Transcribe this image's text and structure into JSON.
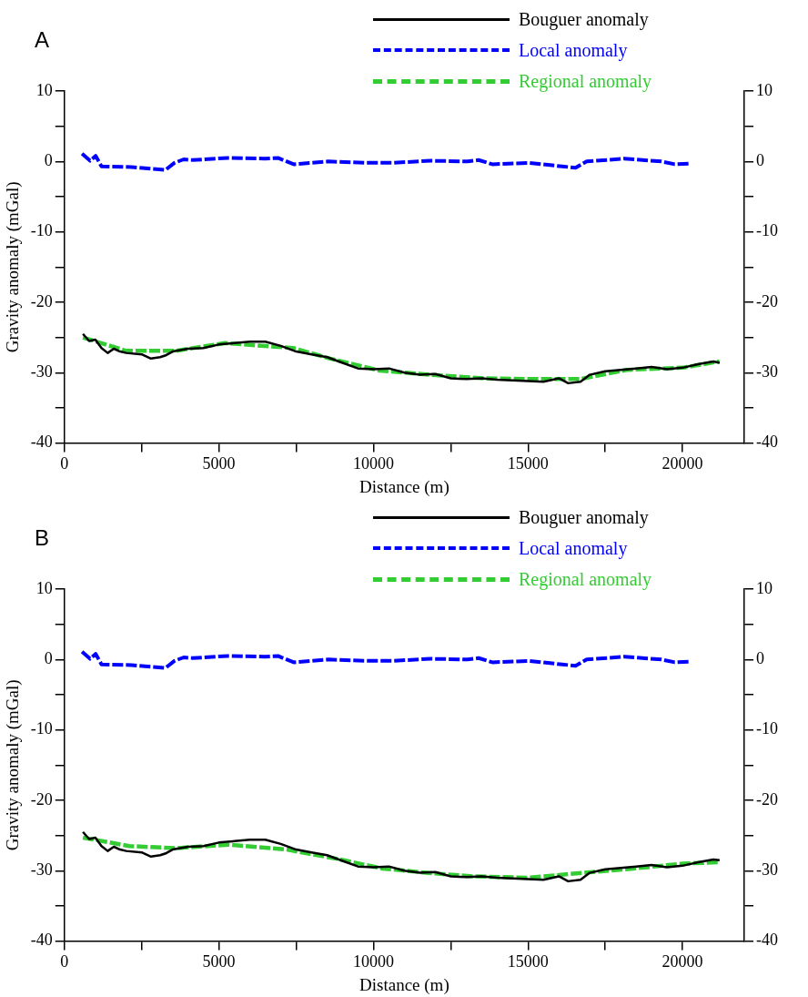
{
  "chart_data": [
    {
      "type": "line",
      "title": "A",
      "xlabel": "Distance (m)",
      "ylabel": "Gravity anomaly (mGal)",
      "xlim": [
        0,
        22000
      ],
      "xticks": [
        0,
        {
          "value": 2500,
          "label": null
        },
        5000,
        {
          "value": 7500,
          "label": null
        },
        10000,
        {
          "value": 12500,
          "label": null
        },
        15000,
        {
          "value": 17500,
          "label": null
        },
        20000
      ],
      "ylim": [
        -40,
        10
      ],
      "yticks": [
        -40,
        {
          "value": -35,
          "label": null
        },
        -30,
        {
          "value": -25,
          "label": null
        },
        -20,
        {
          "value": -15,
          "label": null
        },
        -10,
        {
          "value": -5,
          "label": null
        },
        0,
        {
          "value": 5,
          "label": null
        },
        10
      ],
      "y2lim": [
        -40,
        10
      ],
      "y2ticks": [
        -40,
        {
          "value": -35,
          "label": null
        },
        -30,
        {
          "value": -25,
          "label": null
        },
        -20,
        {
          "value": -15,
          "label": null
        },
        -10,
        {
          "value": -5,
          "label": null
        },
        0,
        {
          "value": 5,
          "label": null
        },
        10
      ],
      "grid": false,
      "legend": "top right",
      "marker": "none",
      "series": [
        {
          "name": "Bouguer anomaly",
          "color": "#000000",
          "line_style": "solid",
          "x": [
            600,
            800,
            1000,
            1200,
            1400,
            1600,
            1800,
            2000,
            2500,
            2800,
            3100,
            3300,
            3500,
            4000,
            4500,
            5000,
            5500,
            6000,
            6500,
            7000,
            7500,
            8000,
            8500,
            9000,
            9500,
            10000,
            10500,
            11000,
            11500,
            12000,
            12500,
            13000,
            13500,
            14000,
            14500,
            15000,
            15500,
            16000,
            16300,
            16700,
            17000,
            17500,
            18000,
            18500,
            19000,
            19500,
            20000,
            20500,
            21000,
            21200
          ],
          "values": [
            -24.5,
            -25.5,
            -25.3,
            -26.5,
            -27.2,
            -26.6,
            -27,
            -27.2,
            -27.4,
            -28,
            -27.8,
            -27.5,
            -27,
            -26.6,
            -26.5,
            -26,
            -25.8,
            -25.6,
            -25.6,
            -26.2,
            -27,
            -27.4,
            -27.8,
            -28.6,
            -29.4,
            -29.5,
            -29.4,
            -30,
            -30.3,
            -30.2,
            -30.8,
            -30.9,
            -30.8,
            -31,
            -31.1,
            -31.2,
            -31.3,
            -30.8,
            -31.5,
            -31.3,
            -30.3,
            -29.8,
            -29.6,
            -29.4,
            -29.2,
            -29.5,
            -29.3,
            -28.8,
            -28.4,
            -28.6
          ]
        },
        {
          "name": "Local anomaly",
          "color": "#0000ff",
          "line_style": "dashed",
          "x": [
            570,
            830,
            1010,
            1200,
            2170,
            3270,
            3560,
            3860,
            4150,
            5280,
            6470,
            6910,
            7420,
            8550,
            9760,
            10270,
            10630,
            11850,
            13050,
            13400,
            13850,
            15000,
            16110,
            16540,
            16900,
            18120,
            19320,
            19750,
            20200
          ],
          "values": [
            1.1,
            0.1,
            0.8,
            -0.7,
            -0.8,
            -1.2,
            -0.2,
            0.3,
            0.2,
            0.5,
            0.4,
            0.5,
            -0.4,
            0,
            -0.2,
            -0.2,
            -0.2,
            0.1,
            0,
            0.2,
            -0.4,
            -0.2,
            -0.7,
            -0.9,
            0,
            0.4,
            0,
            -0.4,
            -0.3
          ]
        },
        {
          "name": "Regional anomaly",
          "color": "#33cc33",
          "line_style": "dashed",
          "x": [
            600,
            2000,
            3600,
            5200,
            7400,
            8600,
            10200,
            11800,
            13600,
            15000,
            16700,
            18200,
            20000,
            21200
          ],
          "values": [
            -25,
            -26.9,
            -26.9,
            -25.8,
            -26.5,
            -28,
            -29.7,
            -30.3,
            -30.8,
            -30.9,
            -30.9,
            -29.6,
            -29.3,
            -28.4
          ]
        }
      ]
    },
    {
      "type": "line",
      "title": "B",
      "xlabel": "Distance (m)",
      "ylabel": "Gravity anomaly (mGal)",
      "xlim": [
        0,
        22000
      ],
      "xticks": [
        0,
        {
          "value": 2500,
          "label": null
        },
        5000,
        {
          "value": 7500,
          "label": null
        },
        10000,
        {
          "value": 12500,
          "label": null
        },
        15000,
        {
          "value": 17500,
          "label": null
        },
        20000
      ],
      "ylim": [
        -40,
        10
      ],
      "yticks": [
        -40,
        {
          "value": -35,
          "label": null
        },
        -30,
        {
          "value": -25,
          "label": null
        },
        -20,
        {
          "value": -15,
          "label": null
        },
        -10,
        {
          "value": -5,
          "label": null
        },
        0,
        {
          "value": 5,
          "label": null
        },
        10
      ],
      "y2lim": [
        -40,
        10
      ],
      "y2ticks": [
        -40,
        {
          "value": -35,
          "label": null
        },
        -30,
        {
          "value": -25,
          "label": null
        },
        -20,
        {
          "value": -15,
          "label": null
        },
        -10,
        {
          "value": -5,
          "label": null
        },
        0,
        {
          "value": 5,
          "label": null
        },
        10
      ],
      "grid": false,
      "legend": "top right",
      "marker": "none",
      "series": [
        {
          "name": "Bouguer anomaly",
          "color": "#000000",
          "line_style": "solid",
          "x": [
            600,
            800,
            1000,
            1200,
            1400,
            1600,
            1800,
            2000,
            2500,
            2800,
            3100,
            3300,
            3500,
            4000,
            4500,
            5000,
            5500,
            6000,
            6500,
            7000,
            7500,
            8000,
            8500,
            9000,
            9500,
            10000,
            10500,
            11000,
            11500,
            12000,
            12500,
            13000,
            13500,
            14000,
            14500,
            15000,
            15500,
            16000,
            16300,
            16700,
            17000,
            17500,
            18000,
            18500,
            19000,
            19500,
            20000,
            20500,
            21000,
            21200
          ],
          "values": [
            -24.5,
            -25.5,
            -25.3,
            -26.5,
            -27.2,
            -26.6,
            -27,
            -27.2,
            -27.4,
            -28,
            -27.8,
            -27.5,
            -27,
            -26.6,
            -26.5,
            -26,
            -25.8,
            -25.6,
            -25.6,
            -26.2,
            -27,
            -27.4,
            -27.8,
            -28.6,
            -29.4,
            -29.5,
            -29.4,
            -30,
            -30.3,
            -30.2,
            -30.8,
            -30.9,
            -30.8,
            -31,
            -31.1,
            -31.2,
            -31.3,
            -30.8,
            -31.5,
            -31.3,
            -30.3,
            -29.8,
            -29.6,
            -29.4,
            -29.2,
            -29.5,
            -29.3,
            -28.8,
            -28.4,
            -28.5
          ]
        },
        {
          "name": "Local anomaly",
          "color": "#0000ff",
          "line_style": "dashed",
          "x": [
            570,
            830,
            1010,
            1200,
            2170,
            3270,
            3560,
            3860,
            4150,
            5280,
            6470,
            6910,
            7420,
            8550,
            9760,
            10270,
            10630,
            11850,
            13050,
            13400,
            13850,
            15000,
            16110,
            16540,
            16900,
            18120,
            19320,
            19750,
            20200
          ],
          "values": [
            1.1,
            0.1,
            0.8,
            -0.7,
            -0.8,
            -1.2,
            -0.2,
            0.3,
            0.2,
            0.5,
            0.4,
            0.5,
            -0.4,
            0,
            -0.2,
            -0.2,
            -0.2,
            0.1,
            0,
            0.2,
            -0.4,
            -0.2,
            -0.7,
            -0.9,
            0,
            0.4,
            0,
            -0.4,
            -0.3
          ]
        },
        {
          "name": "Regional anomaly",
          "color": "#33cc33",
          "line_style": "dashed",
          "x": [
            600,
            2100,
            3600,
            5300,
            7200,
            8800,
            10300,
            12000,
            13200,
            15000,
            16800,
            18400,
            20000,
            21200
          ],
          "values": [
            -25.3,
            -26.5,
            -26.8,
            -26.3,
            -27,
            -28.3,
            -29.7,
            -30.4,
            -30.8,
            -31,
            -30.3,
            -29.7,
            -29,
            -28.8
          ]
        }
      ]
    }
  ]
}
